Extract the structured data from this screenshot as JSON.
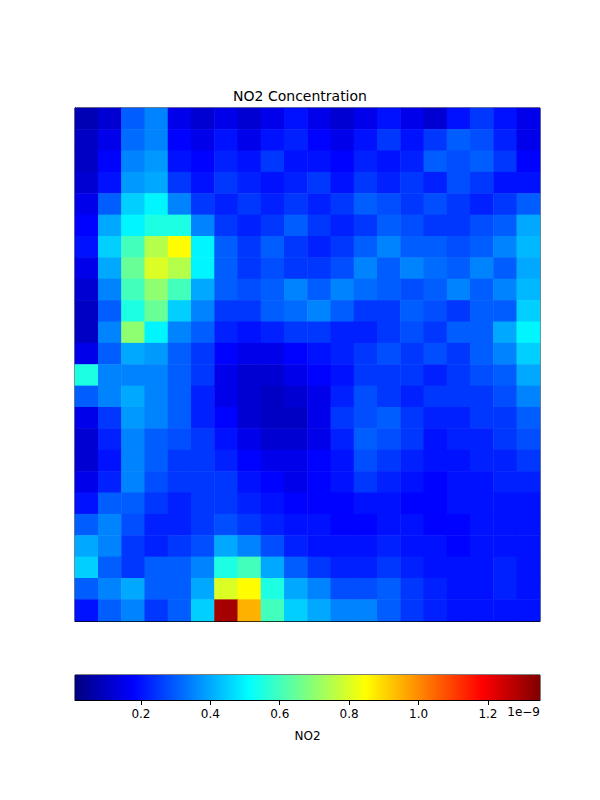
{
  "chart_data": {
    "type": "heatmap",
    "title": "NO2 Concentration",
    "tick_labels": false,
    "cells": [
      [
        0.08,
        0.12,
        0.3,
        0.35,
        0.15,
        0.12,
        0.15,
        0.12,
        0.15,
        0.2,
        0.15,
        0.12,
        0.15,
        0.2,
        0.15,
        0.12,
        0.2,
        0.25,
        0.2,
        0.15
      ],
      [
        0.1,
        0.15,
        0.32,
        0.35,
        0.18,
        0.15,
        0.2,
        0.15,
        0.2,
        0.22,
        0.18,
        0.15,
        0.2,
        0.25,
        0.2,
        0.25,
        0.3,
        0.28,
        0.22,
        0.15
      ],
      [
        0.1,
        0.18,
        0.35,
        0.38,
        0.2,
        0.18,
        0.22,
        0.2,
        0.25,
        0.2,
        0.2,
        0.18,
        0.22,
        0.2,
        0.22,
        0.3,
        0.28,
        0.3,
        0.25,
        0.18
      ],
      [
        0.12,
        0.2,
        0.38,
        0.4,
        0.25,
        0.2,
        0.25,
        0.22,
        0.2,
        0.22,
        0.25,
        0.2,
        0.25,
        0.22,
        0.25,
        0.22,
        0.28,
        0.25,
        0.2,
        0.2
      ],
      [
        0.15,
        0.3,
        0.45,
        0.5,
        0.35,
        0.25,
        0.22,
        0.25,
        0.22,
        0.25,
        0.22,
        0.25,
        0.3,
        0.28,
        0.25,
        0.28,
        0.25,
        0.22,
        0.25,
        0.3
      ],
      [
        0.18,
        0.4,
        0.5,
        0.55,
        0.55,
        0.35,
        0.25,
        0.22,
        0.25,
        0.3,
        0.25,
        0.22,
        0.25,
        0.3,
        0.28,
        0.25,
        0.25,
        0.28,
        0.3,
        0.4
      ],
      [
        0.2,
        0.45,
        0.6,
        0.75,
        0.85,
        0.5,
        0.3,
        0.25,
        0.3,
        0.25,
        0.22,
        0.25,
        0.3,
        0.35,
        0.3,
        0.3,
        0.28,
        0.3,
        0.35,
        0.42
      ],
      [
        0.15,
        0.4,
        0.65,
        0.8,
        0.75,
        0.5,
        0.3,
        0.25,
        0.28,
        0.25,
        0.25,
        0.28,
        0.35,
        0.3,
        0.35,
        0.32,
        0.3,
        0.35,
        0.3,
        0.4
      ],
      [
        0.12,
        0.35,
        0.6,
        0.7,
        0.6,
        0.4,
        0.3,
        0.28,
        0.3,
        0.35,
        0.3,
        0.35,
        0.32,
        0.3,
        0.28,
        0.3,
        0.35,
        0.3,
        0.35,
        0.42
      ],
      [
        0.1,
        0.3,
        0.55,
        0.65,
        0.45,
        0.35,
        0.25,
        0.25,
        0.3,
        0.32,
        0.35,
        0.3,
        0.25,
        0.25,
        0.3,
        0.28,
        0.25,
        0.3,
        0.3,
        0.45
      ],
      [
        0.1,
        0.35,
        0.7,
        0.5,
        0.35,
        0.3,
        0.22,
        0.2,
        0.22,
        0.25,
        0.25,
        0.22,
        0.22,
        0.25,
        0.28,
        0.25,
        0.3,
        0.3,
        0.4,
        0.5
      ],
      [
        0.15,
        0.3,
        0.4,
        0.38,
        0.3,
        0.25,
        0.18,
        0.15,
        0.15,
        0.18,
        0.2,
        0.22,
        0.25,
        0.28,
        0.25,
        0.28,
        0.25,
        0.3,
        0.35,
        0.45
      ],
      [
        0.55,
        0.35,
        0.35,
        0.35,
        0.3,
        0.25,
        0.15,
        0.12,
        0.12,
        0.15,
        0.18,
        0.2,
        0.25,
        0.25,
        0.25,
        0.22,
        0.25,
        0.28,
        0.3,
        0.4
      ],
      [
        0.3,
        0.35,
        0.4,
        0.35,
        0.3,
        0.22,
        0.15,
        0.12,
        0.1,
        0.12,
        0.15,
        0.22,
        0.28,
        0.25,
        0.22,
        0.25,
        0.25,
        0.25,
        0.28,
        0.35
      ],
      [
        0.15,
        0.25,
        0.38,
        0.35,
        0.3,
        0.22,
        0.18,
        0.12,
        0.1,
        0.1,
        0.15,
        0.25,
        0.28,
        0.3,
        0.25,
        0.22,
        0.22,
        0.25,
        0.25,
        0.3
      ],
      [
        0.12,
        0.22,
        0.35,
        0.3,
        0.28,
        0.25,
        0.2,
        0.15,
        0.12,
        0.12,
        0.15,
        0.22,
        0.3,
        0.28,
        0.25,
        0.2,
        0.22,
        0.22,
        0.25,
        0.28
      ],
      [
        0.12,
        0.2,
        0.35,
        0.3,
        0.25,
        0.25,
        0.22,
        0.18,
        0.15,
        0.15,
        0.18,
        0.2,
        0.28,
        0.25,
        0.22,
        0.2,
        0.2,
        0.22,
        0.22,
        0.25
      ],
      [
        0.15,
        0.22,
        0.35,
        0.28,
        0.25,
        0.25,
        0.25,
        0.2,
        0.18,
        0.15,
        0.18,
        0.2,
        0.25,
        0.22,
        0.2,
        0.18,
        0.2,
        0.2,
        0.22,
        0.22
      ],
      [
        0.2,
        0.3,
        0.3,
        0.25,
        0.22,
        0.25,
        0.25,
        0.22,
        0.2,
        0.18,
        0.18,
        0.18,
        0.2,
        0.2,
        0.18,
        0.18,
        0.2,
        0.2,
        0.2,
        0.2
      ],
      [
        0.3,
        0.35,
        0.28,
        0.22,
        0.22,
        0.25,
        0.28,
        0.25,
        0.22,
        0.2,
        0.2,
        0.18,
        0.18,
        0.2,
        0.2,
        0.18,
        0.18,
        0.2,
        0.2,
        0.2
      ],
      [
        0.4,
        0.35,
        0.25,
        0.22,
        0.25,
        0.28,
        0.4,
        0.35,
        0.28,
        0.22,
        0.2,
        0.2,
        0.2,
        0.22,
        0.2,
        0.2,
        0.18,
        0.2,
        0.2,
        0.2
      ],
      [
        0.45,
        0.3,
        0.25,
        0.3,
        0.3,
        0.35,
        0.55,
        0.6,
        0.4,
        0.3,
        0.25,
        0.22,
        0.22,
        0.25,
        0.22,
        0.2,
        0.2,
        0.2,
        0.22,
        0.2
      ],
      [
        0.3,
        0.35,
        0.4,
        0.3,
        0.3,
        0.4,
        0.8,
        0.85,
        0.55,
        0.4,
        0.35,
        0.28,
        0.28,
        0.3,
        0.25,
        0.22,
        0.2,
        0.2,
        0.22,
        0.2
      ],
      [
        0.2,
        0.3,
        0.35,
        0.25,
        0.3,
        0.45,
        1.3,
        0.95,
        0.6,
        0.45,
        0.4,
        0.35,
        0.35,
        0.3,
        0.25,
        0.22,
        0.2,
        0.2,
        0.2,
        0.2
      ]
    ],
    "colorbar_label": "NO2",
    "colorbar_range": [
      0.01,
      1.35
    ],
    "colorbar_ticks": [
      0.2,
      0.4,
      0.6,
      0.8,
      {
        "value": 1.0,
        "label": "1.0"
      },
      1.2
    ],
    "colorbar_offset_text": "1e−9"
  }
}
